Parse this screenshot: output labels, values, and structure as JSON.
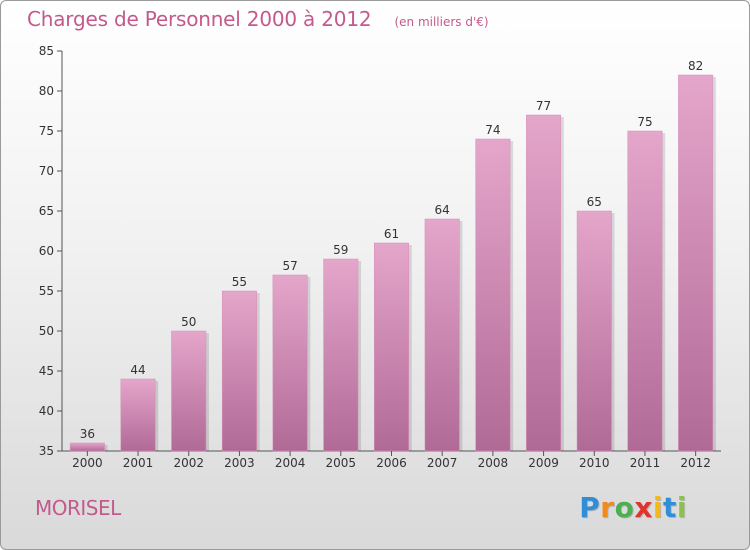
{
  "chart_data": {
    "type": "bar",
    "title": "Charges de Personnel 2000 à 2012",
    "subtitle": "(en milliers d'€)",
    "xlabel": "",
    "ylabel": "",
    "categories": [
      "2000",
      "2001",
      "2002",
      "2003",
      "2004",
      "2005",
      "2006",
      "2007",
      "2008",
      "2009",
      "2010",
      "2011",
      "2012"
    ],
    "values": [
      36,
      44,
      50,
      55,
      57,
      59,
      61,
      64,
      74,
      77,
      65,
      75,
      82
    ],
    "ylim": [
      35,
      85
    ],
    "yticks": [
      35,
      40,
      45,
      50,
      55,
      60,
      65,
      70,
      75,
      80,
      85
    ],
    "grid": false,
    "legend": "none",
    "bar_color": "#c7709e"
  },
  "footer": {
    "town": "MORISEL",
    "brand": "Proxiti"
  },
  "colors": {
    "accent": "#c45a8c",
    "brand_letters": [
      "#2e8fd8",
      "#f28a1b",
      "#4caf50",
      "#e0342f",
      "#f6b817",
      "#2e8fd8",
      "#8bc34a"
    ]
  }
}
